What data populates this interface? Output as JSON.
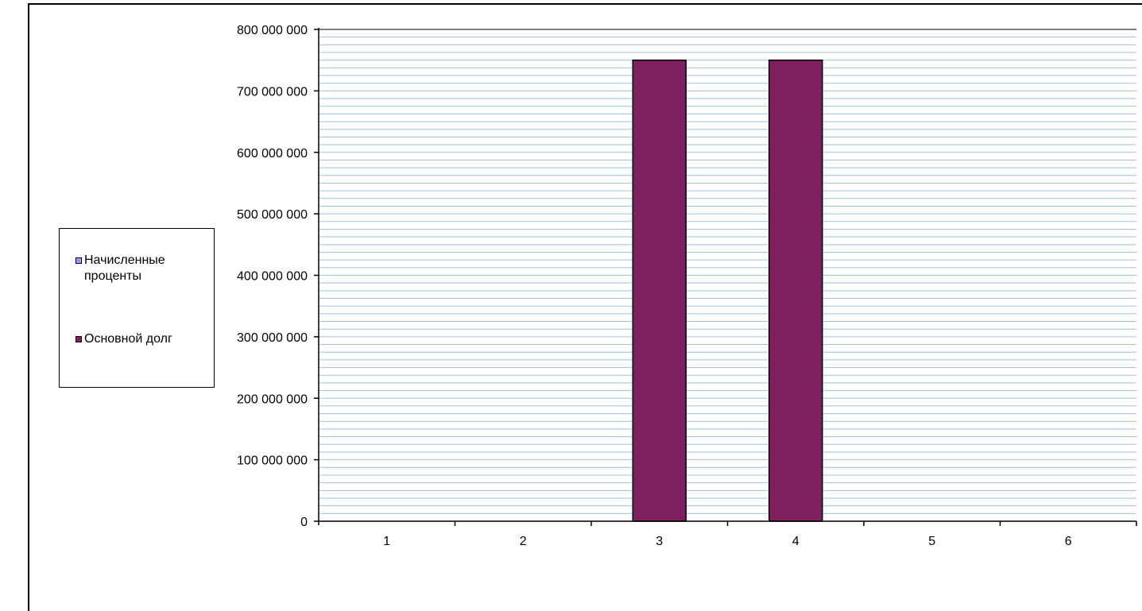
{
  "chart_data": {
    "type": "bar",
    "title": "",
    "xlabel": "",
    "ylabel": "",
    "categories": [
      "1",
      "2",
      "3",
      "4",
      "5",
      "6"
    ],
    "series": [
      {
        "name": "Начисленные проценты",
        "color": "#9999FF",
        "values": [
          0,
          0,
          0,
          0,
          0,
          0
        ]
      },
      {
        "name": "Основной долг",
        "color": "#7F1F5F",
        "values": [
          0,
          0,
          750000000,
          750000000,
          0,
          0
        ]
      }
    ],
    "ylim": [
      0,
      800000000
    ],
    "yticks": [
      "0",
      "100 000 000",
      "200 000 000",
      "300 000 000",
      "400 000 000",
      "500 000 000",
      "600 000 000",
      "700 000 000",
      "800 000 000"
    ],
    "grid": true,
    "gridline_color": "#9DC3E6",
    "legend_position": "left"
  },
  "legend": {
    "items": [
      {
        "label": "Начисленные проценты",
        "color": "#9999FF",
        "icon": "legend-swatch-icon"
      },
      {
        "label": "Основной долг",
        "color": "#7F1F5F",
        "icon": "legend-swatch-icon"
      }
    ]
  }
}
